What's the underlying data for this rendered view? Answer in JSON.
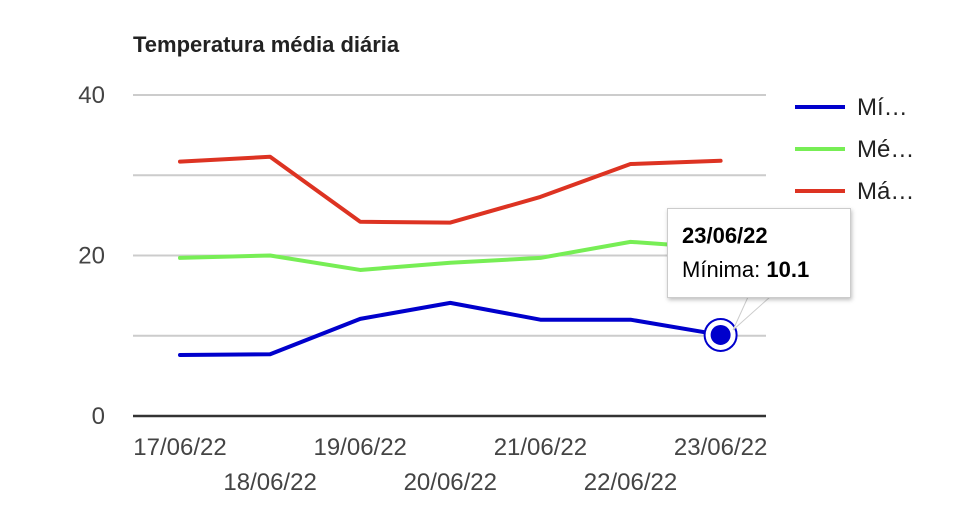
{
  "chart_data": {
    "type": "line",
    "title": "Temperatura média diária",
    "categories": [
      "17/06/22",
      "18/06/22",
      "19/06/22",
      "20/06/22",
      "21/06/22",
      "22/06/22",
      "23/06/22"
    ],
    "series": [
      {
        "name": "Mínima",
        "legend_label": "Mí…",
        "color": "#0000cc",
        "values": [
          7.6,
          7.7,
          12.1,
          14.1,
          12.0,
          12.0,
          10.1
        ]
      },
      {
        "name": "Média",
        "legend_label": "Mé…",
        "color": "#77ee55",
        "values": [
          19.7,
          20.0,
          18.2,
          19.1,
          19.7,
          21.7,
          20.9
        ]
      },
      {
        "name": "Máxima",
        "legend_label": "Má…",
        "color": "#dd3322",
        "values": [
          31.7,
          32.3,
          24.2,
          24.1,
          27.3,
          31.4,
          31.8
        ]
      }
    ],
    "ylim": [
      0,
      40
    ],
    "yticks": [
      0,
      20,
      40
    ],
    "gridlines": [
      0,
      10,
      20,
      30,
      40
    ],
    "grid": true,
    "legend_position": "right"
  },
  "tooltip": {
    "date": "23/06/22",
    "label": "Mínima:",
    "value": "10.1",
    "series_index": 0,
    "point_index": 6
  }
}
